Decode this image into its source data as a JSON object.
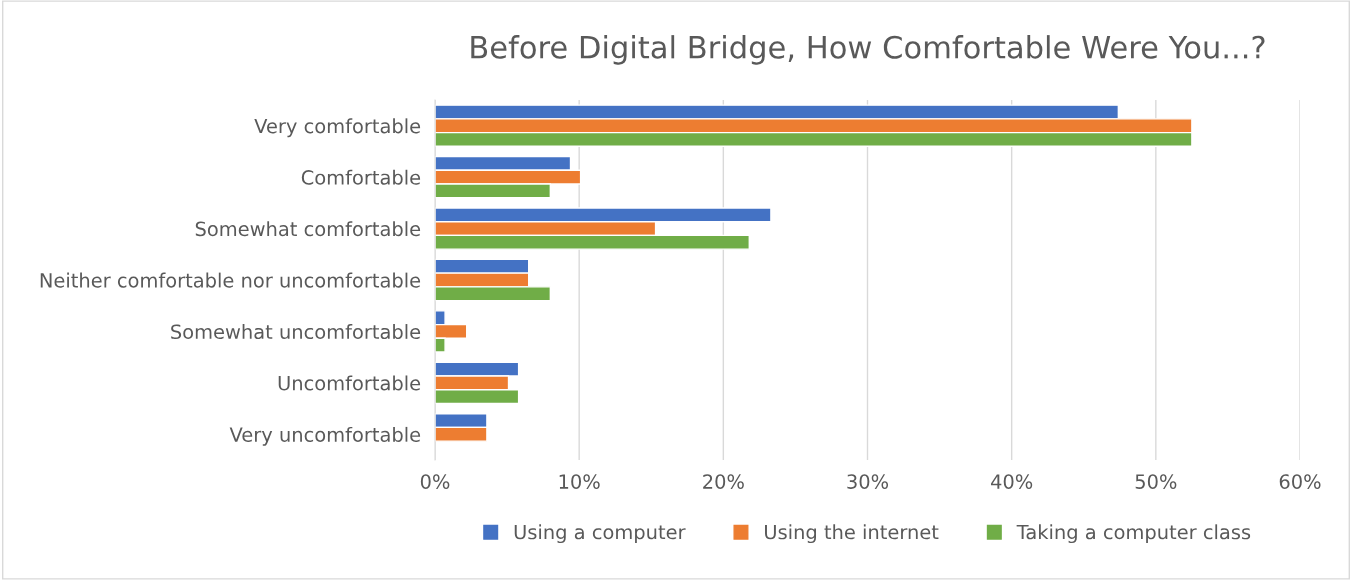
{
  "chart_data": {
    "type": "bar",
    "orientation": "horizontal",
    "title": "Before Digital Bridge, How Comfortable Were You...?",
    "categories": [
      "Very comfortable",
      "Comfortable",
      "Somewhat comfortable",
      "Neither comfortable nor uncomfortable",
      "Somewhat uncomfortable",
      "Uncomfortable",
      "Very uncomfortable"
    ],
    "series": [
      {
        "name": "Using a computer",
        "color": "#4472c4",
        "values": [
          47.4,
          9.4,
          23.3,
          6.5,
          0.7,
          5.8,
          3.6
        ]
      },
      {
        "name": "Using the internet",
        "color": "#ed7d31",
        "values": [
          52.5,
          10.1,
          15.3,
          6.5,
          2.2,
          5.1,
          3.6
        ]
      },
      {
        "name": "Taking a computer class",
        "color": "#70ad47",
        "values": [
          52.5,
          8.0,
          21.8,
          8.0,
          0.7,
          5.8,
          null
        ]
      }
    ],
    "xlim": [
      0,
      60
    ],
    "xticks": [
      {
        "value": 0,
        "label": "0%"
      },
      {
        "value": 10,
        "label": "10%"
      },
      {
        "value": 20,
        "label": "20%"
      },
      {
        "value": 30,
        "label": "30%"
      },
      {
        "value": 40,
        "label": "40%"
      },
      {
        "value": 50,
        "label": "50%"
      },
      {
        "value": 60,
        "label": "60%"
      }
    ],
    "grid": "x",
    "legend": "bottom"
  }
}
